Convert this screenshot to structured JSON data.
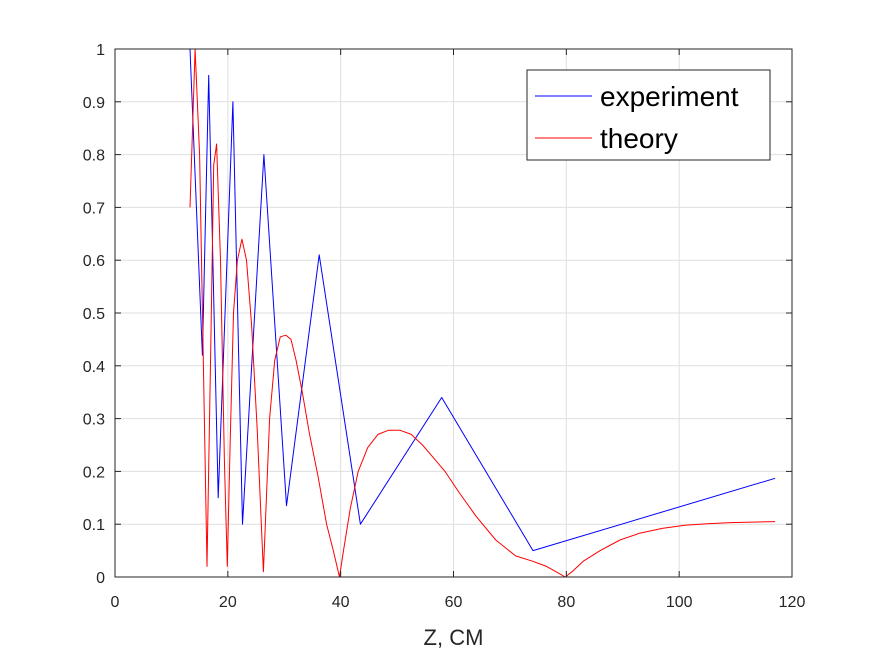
{
  "chart_data": {
    "type": "line",
    "title": "",
    "xlabel": "Z, CM",
    "ylabel": "",
    "xlim": [
      0,
      120
    ],
    "ylim": [
      0,
      1
    ],
    "xticks": [
      "0",
      "20",
      "40",
      "60",
      "80",
      "100",
      "120"
    ],
    "yticks": [
      "0",
      "0.1",
      "0.2",
      "0.3",
      "0.4",
      "0.5",
      "0.6",
      "0.7",
      "0.8",
      "0.9",
      "1"
    ],
    "grid": true,
    "legend_position": "top-right",
    "series": [
      {
        "name": "experiment",
        "color": "#0000ff",
        "x": [
          13.3,
          15.5,
          16.6,
          18.3,
          20.9,
          22.6,
          26.4,
          30.4,
          36.2,
          43.5,
          57.9,
          74.1,
          117.0
        ],
        "y": [
          1.0,
          0.42,
          0.95,
          0.15,
          0.9,
          0.1,
          0.8,
          0.135,
          0.61,
          0.1,
          0.34,
          0.05,
          0.187
        ]
      },
      {
        "name": "theory",
        "color": "#ff0000",
        "x": [
          13.3,
          14.2,
          15.0,
          15.7,
          16.3,
          17.0,
          17.5,
          18.0,
          18.7,
          19.4,
          19.9,
          20.4,
          21.0,
          21.7,
          22.5,
          23.3,
          24.2,
          25.2,
          26.3,
          26.8,
          27.4,
          28.3,
          29.3,
          30.3,
          31.2,
          32.1,
          33.2,
          34.5,
          36.0,
          37.5,
          38.7,
          39.8,
          40.5,
          41.7,
          43.1,
          44.8,
          46.6,
          48.5,
          50.5,
          52.5,
          54.5,
          56.5,
          58.5,
          61.0,
          64.0,
          67.5,
          71.0,
          74.0,
          76.5,
          78.5,
          79.8,
          81.0,
          83.0,
          86.0,
          89.5,
          93.0,
          97.0,
          101.0,
          105.0,
          109.0,
          113.0,
          117.0
        ],
        "y": [
          0.7,
          1.0,
          0.8,
          0.38,
          0.02,
          0.45,
          0.78,
          0.82,
          0.6,
          0.22,
          0.02,
          0.25,
          0.5,
          0.6,
          0.64,
          0.6,
          0.48,
          0.28,
          0.01,
          0.14,
          0.3,
          0.41,
          0.455,
          0.458,
          0.45,
          0.41,
          0.35,
          0.27,
          0.19,
          0.1,
          0.05,
          0.0,
          0.05,
          0.13,
          0.2,
          0.245,
          0.27,
          0.278,
          0.278,
          0.27,
          0.25,
          0.225,
          0.2,
          0.16,
          0.115,
          0.07,
          0.04,
          0.03,
          0.02,
          0.008,
          0.0,
          0.01,
          0.03,
          0.05,
          0.07,
          0.083,
          0.092,
          0.098,
          0.101,
          0.103,
          0.104,
          0.105
        ]
      }
    ]
  }
}
